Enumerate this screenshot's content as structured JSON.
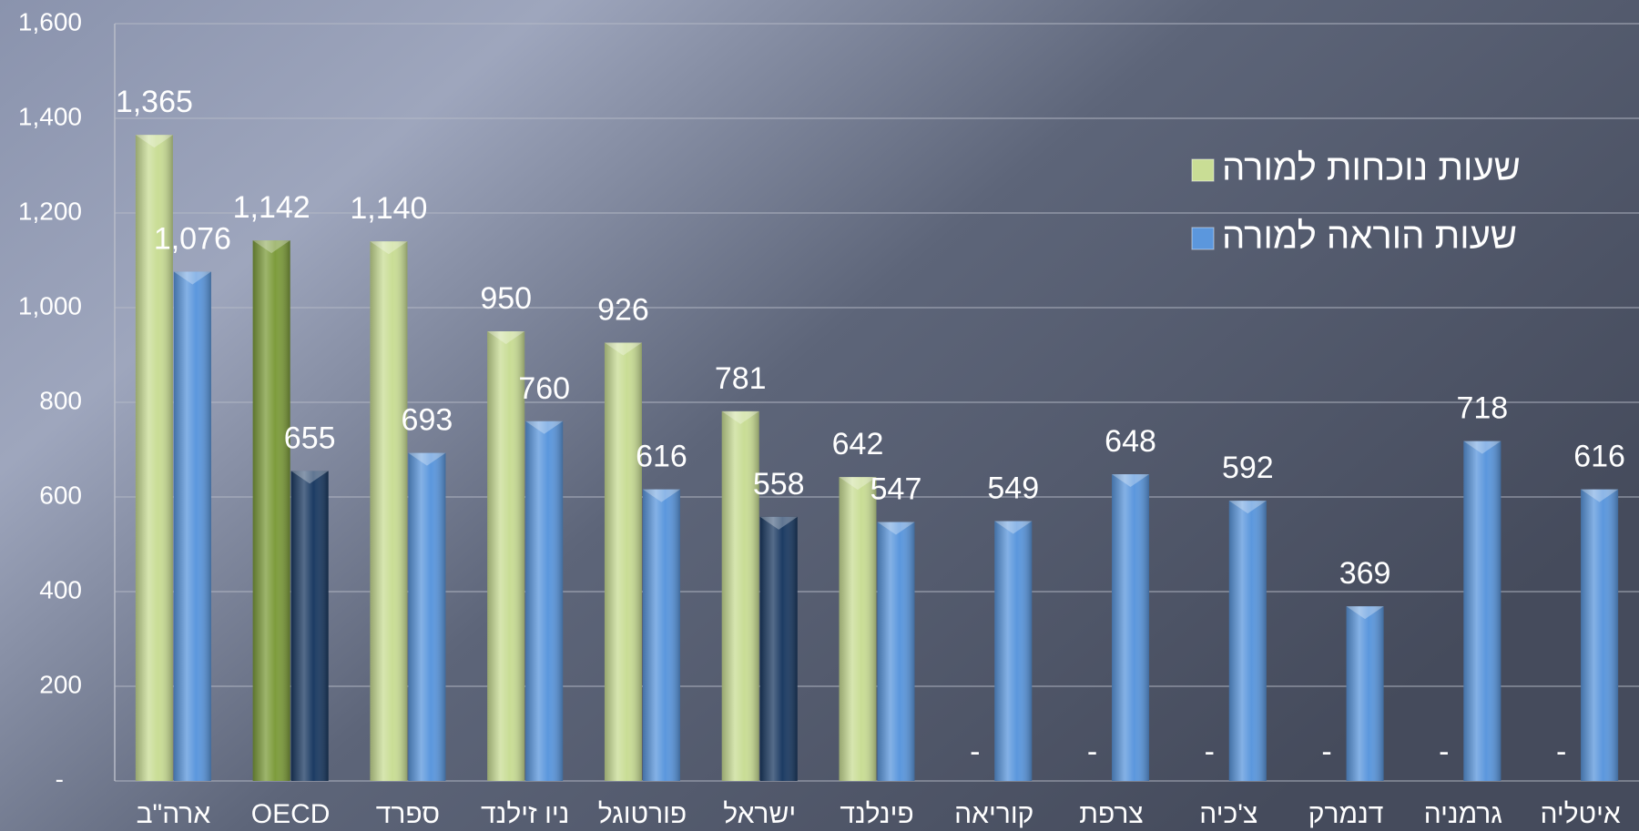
{
  "chart_data": {
    "type": "bar",
    "categories": [
      "ארה\"ב",
      "OECD",
      "ספרד",
      "ניו זילנד",
      "פורטוגל",
      "ישראל",
      "פינלנד",
      "קוריאה",
      "צרפת",
      "צ'כיה",
      "דנמרק",
      "גרמניה",
      "איטליה"
    ],
    "series": [
      {
        "name": "שעות נוכחות למורה",
        "color": "#c9dd95",
        "colors": [
          "#c9dd95",
          "#7d9c3c",
          "#c9dd95",
          "#c9dd95",
          "#c9dd95",
          "#c9dd95",
          "#c9dd95",
          "#c9dd95",
          "#c9dd95",
          "#c9dd95",
          "#c9dd95",
          "#c9dd95",
          "#c9dd95"
        ],
        "values": [
          1365,
          1142,
          1140,
          950,
          926,
          781,
          642,
          0,
          0,
          0,
          0,
          0,
          0
        ],
        "value_labels": [
          "1,365",
          "1,142",
          "1,140",
          "950",
          "926",
          "781",
          "642",
          "-",
          "-",
          "-",
          "-",
          "-",
          "-"
        ]
      },
      {
        "name": "שעות הוראה למורה",
        "color": "#5b97dd",
        "colors": [
          "#5b97dd",
          "#1c3b63",
          "#5b97dd",
          "#5b97dd",
          "#5b97dd",
          "#1c3b63",
          "#5b97dd",
          "#5b97dd",
          "#5b97dd",
          "#5b97dd",
          "#5b97dd",
          "#5b97dd",
          "#5b97dd"
        ],
        "values": [
          1076,
          655,
          693,
          760,
          616,
          558,
          547,
          549,
          648,
          592,
          369,
          718,
          616
        ],
        "value_labels": [
          "1,076",
          "655",
          "693",
          "760",
          "616",
          "558",
          "547",
          "549",
          "648",
          "592",
          "369",
          "718",
          "616"
        ]
      }
    ],
    "ylim": [
      0,
      1600
    ],
    "yticks": [
      {
        "value": 0,
        "label": "-"
      },
      200,
      400,
      600,
      800,
      {
        "value": 1000,
        "label": "1,000"
      },
      {
        "value": 1200,
        "label": "1,200"
      },
      {
        "value": 1400,
        "label": "1,400"
      },
      {
        "value": 1600,
        "label": "1,600"
      }
    ],
    "grid": true,
    "legend": "upper right"
  }
}
